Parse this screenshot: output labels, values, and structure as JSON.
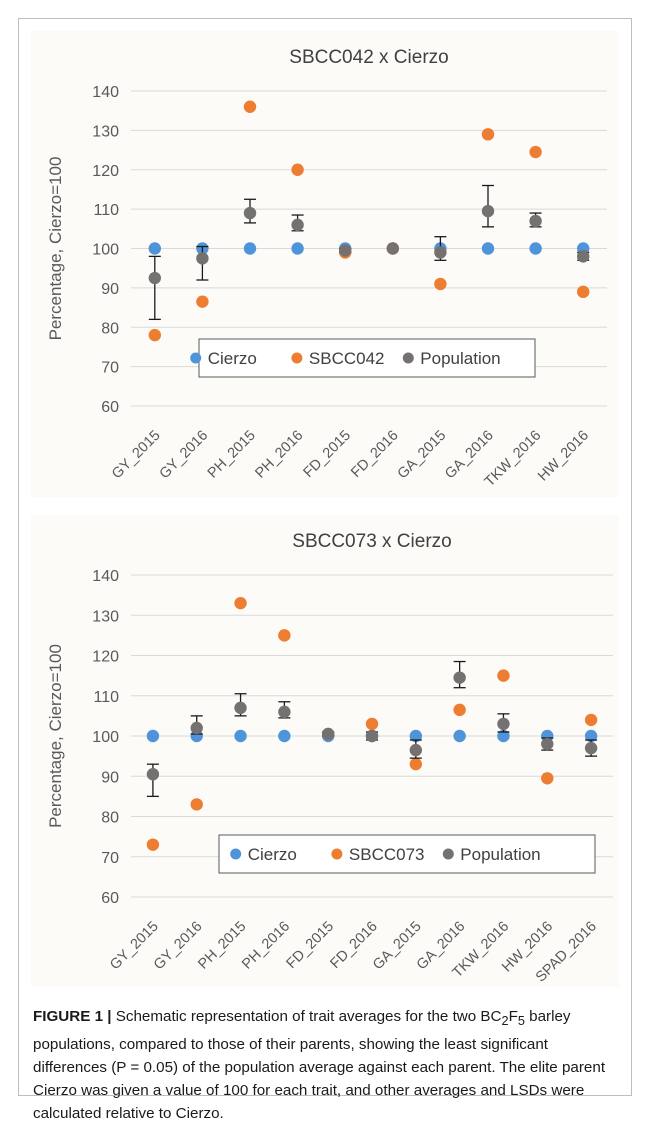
{
  "chart_data": [
    {
      "type": "scatter",
      "title": "SBCC042 x Cierzo",
      "ylabel": "Percentage, Cierzo=100",
      "xlabel": "",
      "ylim": [
        60,
        140
      ],
      "yticks": [
        60,
        70,
        80,
        90,
        100,
        110,
        120,
        130,
        140
      ],
      "grid": true,
      "legend_position": "bottom-inside",
      "categories": [
        "GY_2015",
        "GY_2016",
        "PH_2015",
        "PH_2016",
        "FD_2015",
        "FD_2016",
        "GA_2015",
        "GA_2016",
        "TKW_2016",
        "HW_2016"
      ],
      "series": [
        {
          "name": "Cierzo",
          "color": "#4f93d8",
          "values": [
            100,
            100,
            100,
            100,
            100,
            100,
            100,
            100,
            100,
            100
          ]
        },
        {
          "name": "SBCC042",
          "color": "#ed7d31",
          "values": [
            78,
            86.5,
            136,
            120,
            99,
            100,
            91,
            129,
            124.5,
            89
          ]
        },
        {
          "name": "Population",
          "color": "#767171",
          "values": [
            92.5,
            97.5,
            109,
            106,
            99.5,
            100,
            99,
            109.5,
            107,
            98
          ],
          "error_minus": [
            10.5,
            5.5,
            2.5,
            1.5,
            0.5,
            0,
            2,
            4,
            1.5,
            1
          ],
          "error_plus": [
            5.5,
            3,
            3.5,
            2.5,
            0.5,
            0,
            4,
            6.5,
            2,
            1
          ]
        }
      ]
    },
    {
      "type": "scatter",
      "title": "SBCC073 x Cierzo",
      "ylabel": "Percentage, Cierzo=100",
      "xlabel": "",
      "ylim": [
        60,
        140
      ],
      "yticks": [
        60,
        70,
        80,
        90,
        100,
        110,
        120,
        130,
        140
      ],
      "grid": true,
      "legend_position": "bottom-inside",
      "categories": [
        "GY_2015",
        "GY_2016",
        "PH_2015",
        "PH_2016",
        "FD_2015",
        "FD_2016",
        "GA_2015",
        "GA_2016",
        "TKW_2016",
        "HW_2016",
        "SPAD_2016"
      ],
      "series": [
        {
          "name": "Cierzo",
          "color": "#4f93d8",
          "values": [
            100,
            100,
            100,
            100,
            100,
            100,
            100,
            100,
            100,
            100,
            100
          ]
        },
        {
          "name": "SBCC073",
          "color": "#ed7d31",
          "values": [
            73,
            83,
            133,
            125,
            100.5,
            103,
            93,
            106.5,
            115,
            89.5,
            104
          ]
        },
        {
          "name": "Population",
          "color": "#767171",
          "values": [
            90.5,
            102,
            107,
            106,
            100.5,
            100,
            96.5,
            114.5,
            103,
            98,
            97
          ],
          "error_minus": [
            5.5,
            1.5,
            2,
            1.5,
            0.5,
            1,
            2,
            2.5,
            2,
            1.5,
            2
          ],
          "error_plus": [
            2.5,
            3,
            3.5,
            2.5,
            0.5,
            1,
            2.5,
            4,
            2.5,
            1.5,
            2
          ]
        }
      ]
    }
  ],
  "caption": {
    "lead": "FIGURE 1 |",
    "text_before_sub": " Schematic representation of trait averages for the two BC",
    "sub1": "2",
    "mid": "F",
    "sub2": "5",
    "rest": " barley populations, compared to those of their parents, showing the least significant differences (P = 0.05) of the population average against each parent. The elite parent Cierzo was given a value of 100 for each trait, and other averages and LSDs were calculated relative to Cierzo."
  }
}
